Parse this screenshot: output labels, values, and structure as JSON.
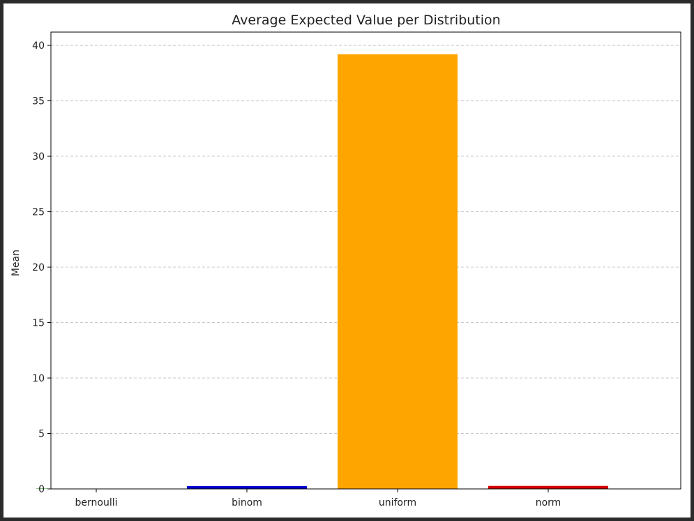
{
  "chart_data": {
    "type": "bar",
    "title": "Average Expected Value per Distribution",
    "xlabel": "",
    "ylabel": "Mean",
    "categories": [
      "bernoulli",
      "binom",
      "uniform",
      "norm"
    ],
    "values": [
      0.03,
      0.25,
      39.2,
      0.27
    ],
    "colors": [
      "#008000",
      "#0000cd",
      "#ffa500",
      "#d40000"
    ],
    "yticks": [
      0,
      5,
      10,
      15,
      20,
      25,
      30,
      35,
      40
    ],
    "ylim": [
      0,
      41.2
    ],
    "grid": "y-dashed",
    "legend": "none"
  }
}
